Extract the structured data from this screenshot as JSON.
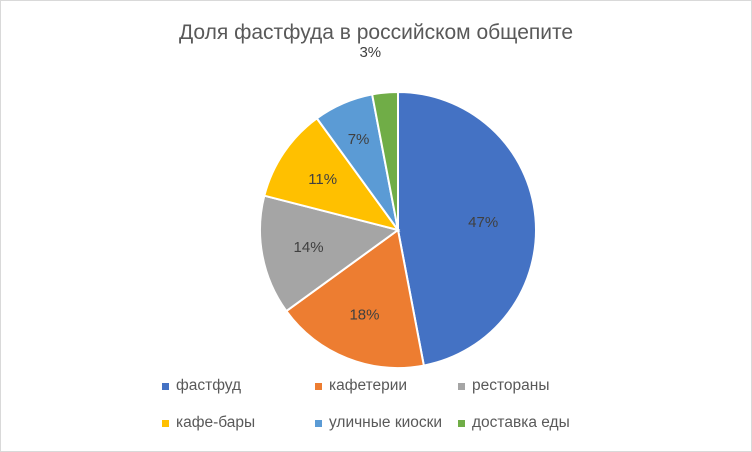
{
  "chart_data": {
    "type": "pie",
    "title": "Доля фастфуда в российском общепите",
    "categories": [
      "фастфуд",
      "кафетерии",
      "рестораны",
      "кафе-бары",
      "уличные киоски",
      "доставка еды"
    ],
    "values": [
      47,
      18,
      14,
      11,
      7,
      3
    ],
    "data_labels": [
      "47%",
      "18%",
      "14%",
      "11%",
      "7%",
      "3%"
    ],
    "colors": [
      "#4472C4",
      "#ED7D31",
      "#A5A5A5",
      "#FFC000",
      "#5B9BD5",
      "#70AD47"
    ],
    "start_angle_deg": 0,
    "direction": "clockwise",
    "legend_position": "bottom",
    "grid": false
  }
}
